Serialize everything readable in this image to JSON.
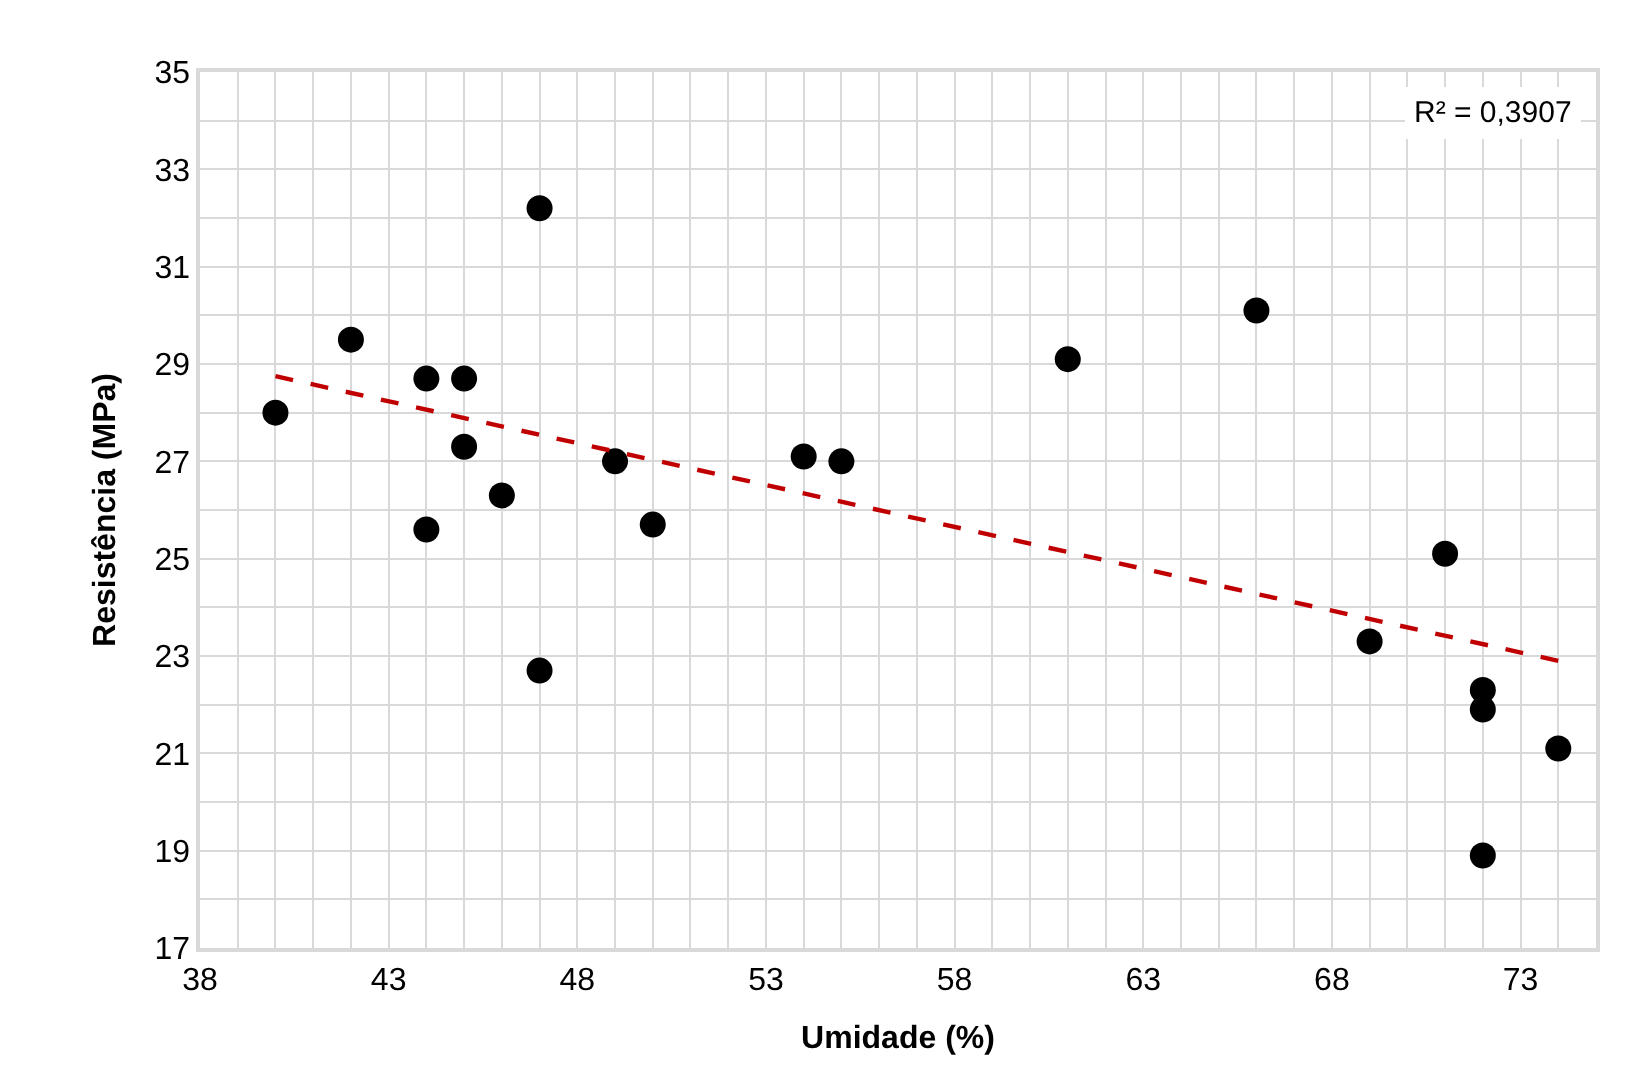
{
  "chart_data": {
    "type": "scatter",
    "xlabel": "Umidade (%)",
    "ylabel": "Resistência (MPa)",
    "annotations": [
      "R² = 0,3907"
    ],
    "xlim": [
      38,
      75
    ],
    "ylim": [
      17,
      35
    ],
    "xticks": [
      38,
      {
        "value": 39,
        "label": null
      },
      {
        "value": 40,
        "label": null
      },
      {
        "value": 41,
        "label": null
      },
      {
        "value": 42,
        "label": null
      },
      43,
      {
        "value": 44,
        "label": null
      },
      {
        "value": 45,
        "label": null
      },
      {
        "value": 46,
        "label": null
      },
      {
        "value": 47,
        "label": null
      },
      48,
      {
        "value": 49,
        "label": null
      },
      {
        "value": 50,
        "label": null
      },
      {
        "value": 51,
        "label": null
      },
      {
        "value": 52,
        "label": null
      },
      53,
      {
        "value": 54,
        "label": null
      },
      {
        "value": 55,
        "label": null
      },
      {
        "value": 56,
        "label": null
      },
      {
        "value": 57,
        "label": null
      },
      58,
      {
        "value": 59,
        "label": null
      },
      {
        "value": 60,
        "label": null
      },
      {
        "value": 61,
        "label": null
      },
      {
        "value": 62,
        "label": null
      },
      63,
      {
        "value": 64,
        "label": null
      },
      {
        "value": 65,
        "label": null
      },
      {
        "value": 66,
        "label": null
      },
      {
        "value": 67,
        "label": null
      },
      68,
      {
        "value": 69,
        "label": null
      },
      {
        "value": 70,
        "label": null
      },
      {
        "value": 71,
        "label": null
      },
      {
        "value": 72,
        "label": null
      },
      73,
      {
        "value": 74,
        "label": null
      },
      {
        "value": 75,
        "label": null
      }
    ],
    "yticks": [
      17,
      {
        "value": 18,
        "label": null
      },
      19,
      {
        "value": 20,
        "label": null
      },
      21,
      {
        "value": 22,
        "label": null
      },
      23,
      {
        "value": 24,
        "label": null
      },
      25,
      {
        "value": 26,
        "label": null
      },
      27,
      {
        "value": 28,
        "label": null
      },
      29,
      {
        "value": 30,
        "label": null
      },
      31,
      {
        "value": 32,
        "label": null
      },
      33,
      {
        "value": 34,
        "label": null
      },
      35
    ],
    "grid": true,
    "marker": "circle",
    "series": [
      {
        "color": "#000000",
        "x": [
          40,
          42,
          44,
          45,
          45,
          46,
          44,
          47,
          47,
          49,
          50,
          54,
          55,
          61,
          66,
          71,
          69,
          72,
          72,
          74,
          72
        ],
        "values": [
          28.0,
          29.5,
          28.7,
          28.7,
          27.3,
          26.3,
          25.6,
          32.2,
          22.7,
          27.0,
          25.7,
          27.1,
          27.0,
          29.1,
          30.1,
          25.1,
          23.3,
          22.3,
          21.9,
          21.1,
          18.9
        ]
      },
      {
        "type": "line",
        "color": "#c00000",
        "line_style": "dashed",
        "marker": "none",
        "x": [
          40,
          74
        ],
        "values": [
          28.75,
          22.9
        ]
      }
    ]
  }
}
